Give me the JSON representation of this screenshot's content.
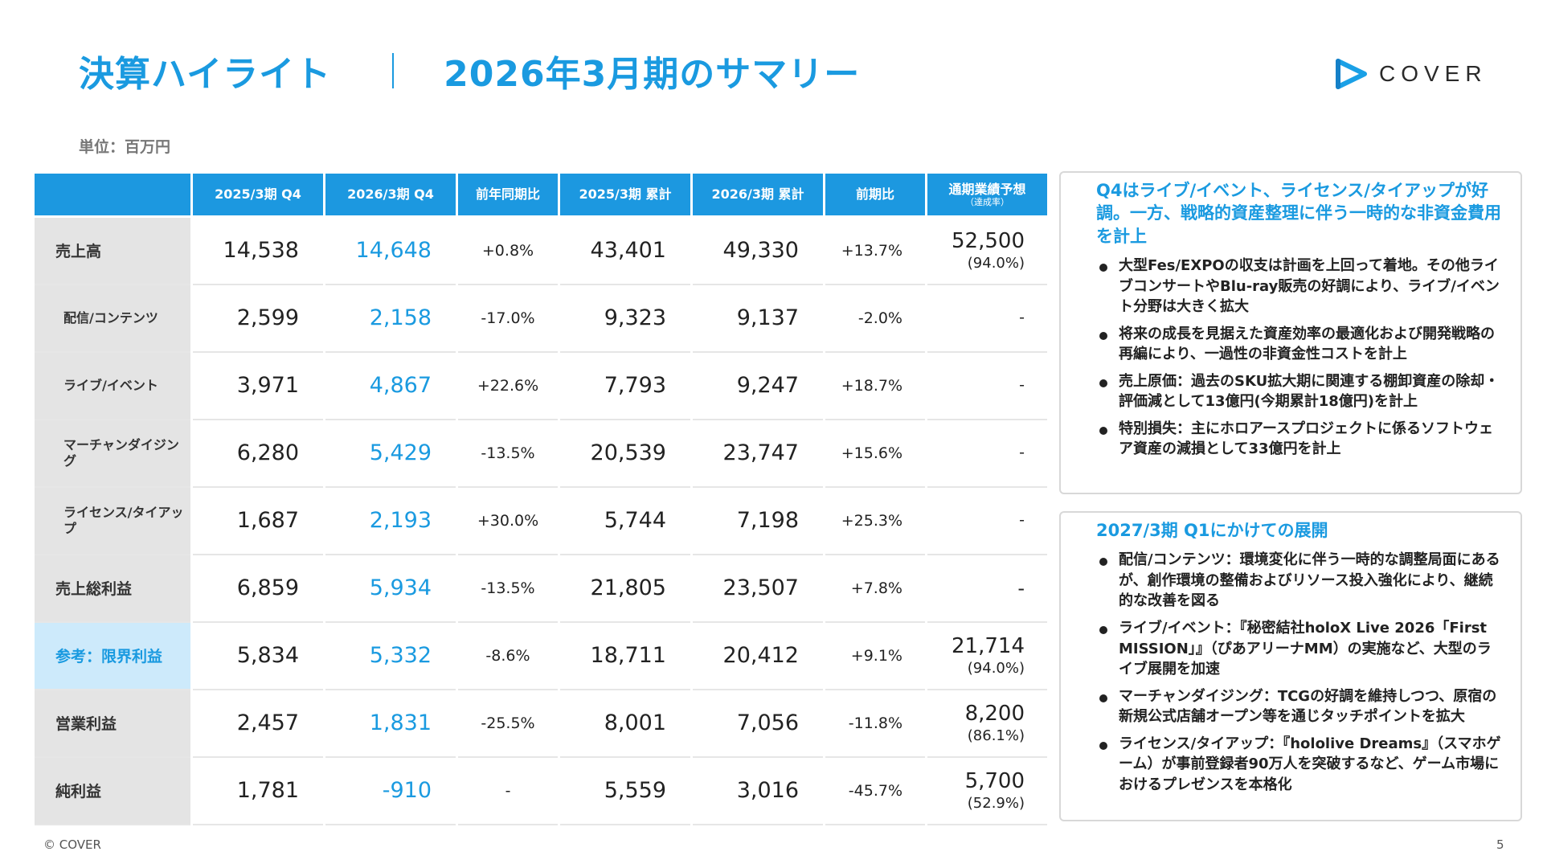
{
  "header": {
    "title": "決算ハイライト",
    "subtitle": "2026年3月期のサマリー",
    "logo_text": "COVER",
    "logo_icon": "cover-triangle-logo-icon",
    "accent_color": "#1a9ae0"
  },
  "unit_label": "単位：百万円",
  "table": {
    "headers": [
      "",
      "2025/3期 Q4",
      "2026/3期 Q4",
      "前年同期比",
      "2025/3期 累計",
      "2026/3期 累計",
      "前期比"
    ],
    "forecast_header": "通期業績予想",
    "forecast_subheader": "（達成率）",
    "rows": [
      {
        "label": "売上高",
        "q4_2025": "14,538",
        "q4_2026": "14,648",
        "yoy": "+0.8%",
        "cum_2025": "43,401",
        "cum_2026": "49,330",
        "vs_prev": "+13.7%",
        "forecast": "52,500",
        "rate": "(94.0%)"
      },
      {
        "label": "配信/コンテンツ",
        "q4_2025": "2,599",
        "q4_2026": "2,158",
        "yoy": "-17.0%",
        "cum_2025": "9,323",
        "cum_2026": "9,137",
        "vs_prev": "-2.0%",
        "forecast": "-",
        "rate": ""
      },
      {
        "label": "ライブ/イベント",
        "q4_2025": "3,971",
        "q4_2026": "4,867",
        "yoy": "+22.6%",
        "cum_2025": "7,793",
        "cum_2026": "9,247",
        "vs_prev": "+18.7%",
        "forecast": "-",
        "rate": ""
      },
      {
        "label": "マーチャンダイジング",
        "q4_2025": "6,280",
        "q4_2026": "5,429",
        "yoy": "-13.5%",
        "cum_2025": "20,539",
        "cum_2026": "23,747",
        "vs_prev": "+15.6%",
        "forecast": "-",
        "rate": ""
      },
      {
        "label": "ライセンス/タイアップ",
        "q4_2025": "1,687",
        "q4_2026": "2,193",
        "yoy": "+30.0%",
        "cum_2025": "5,744",
        "cum_2026": "7,198",
        "vs_prev": "+25.3%",
        "forecast": "-",
        "rate": ""
      },
      {
        "label": "売上総利益",
        "q4_2025": "6,859",
        "q4_2026": "5,934",
        "yoy": "-13.5%",
        "cum_2025": "21,805",
        "cum_2026": "23,507",
        "vs_prev": "+7.8%",
        "forecast": "-",
        "rate": ""
      },
      {
        "label": "参考：限界利益",
        "q4_2025": "5,834",
        "q4_2026": "5,332",
        "yoy": "-8.6%",
        "cum_2025": "18,711",
        "cum_2026": "20,412",
        "vs_prev": "+9.1%",
        "forecast": "21,714",
        "rate": "(94.0%)"
      },
      {
        "label": "営業利益",
        "q4_2025": "2,457",
        "q4_2026": "1,831",
        "yoy": "-25.5%",
        "cum_2025": "8,001",
        "cum_2026": "7,056",
        "vs_prev": "-11.8%",
        "forecast": "8,200",
        "rate": "(86.1%)"
      },
      {
        "label": "純利益",
        "q4_2025": "1,781",
        "q4_2026": "-910",
        "yoy": "-",
        "cum_2025": "5,559",
        "cum_2026": "3,016",
        "vs_prev": "-45.7%",
        "forecast": "5,700",
        "rate": "(52.9%)"
      }
    ]
  },
  "panel_q4": {
    "heading": "Q4はライブ/イベント、ライセンス/タイアップが好調。一方、戦略的資産整理に伴う一時的な非資金費用を計上",
    "bullets": [
      "大型Fes/EXPOの収支は計画を上回って着地。その他ライブコンサートやBlu-ray販売の好調により、ライブ/イベント分野は大きく拡大",
      "将来の成長を見据えた資産効率の最適化および開発戦略の再編により、一過性の非資金性コストを計上",
      "売上原価：過去のSKU拡大期に関連する棚卸資産の除却・評価減として13億円(今期累計18億円)を計上",
      "特別損失：主にホロアースプロジェクトに係るソフトウェア資産の減損として33億円を計上"
    ]
  },
  "panel_outlook": {
    "heading": "2027/3期 Q1にかけての展開",
    "bullets": [
      "配信/コンテンツ：環境変化に伴う一時的な調整局面にあるが、創作環境の整備およびリソース投入強化により、継続的な改善を図る",
      "ライブ/イベント：『秘密結社holoX Live 2026「First MISSION」』（ぴあアリーナMM）の実施など、大型のライブ展開を加速",
      "マーチャンダイジング：TCGの好調を維持しつつ、原宿の新規公式店舗オープン等を通じタッチポイントを拡大",
      "ライセンス/タイアップ：『hololive Dreams』（スマホゲーム）が事前登録者90万人を突破するなど、ゲーム市場におけるプレゼンスを本格化"
    ]
  },
  "footer": {
    "copyright": "© COVER",
    "page_number": "5"
  }
}
